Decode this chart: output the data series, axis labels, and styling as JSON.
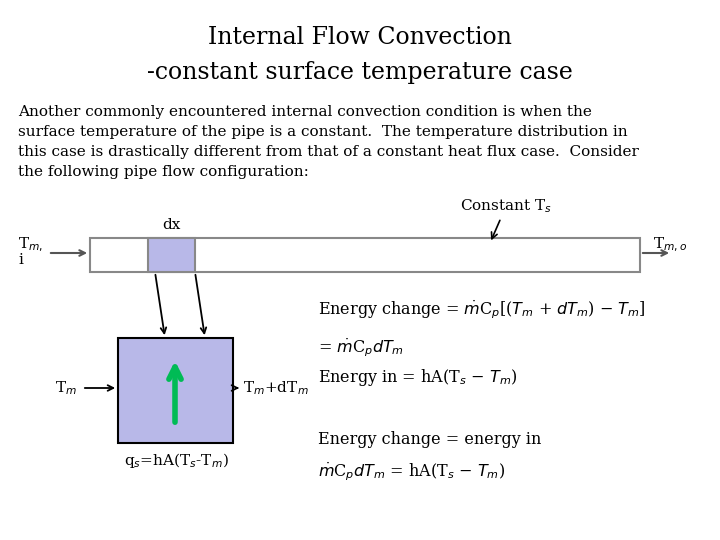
{
  "title_line1": "Internal Flow Convection",
  "title_line2": "-constant surface temperature case",
  "body_text": "Another commonly encountered internal convection condition is when the\nsurface temperature of the pipe is a constant.  The temperature distribution in\nthis case is drastically different from that of a constant heat flux case.  Consider\nthe following pipe flow configuration:",
  "bg_color": "#ffffff",
  "title_fontsize": 17,
  "body_fontsize": 11,
  "eq_fontsize": 11.5
}
